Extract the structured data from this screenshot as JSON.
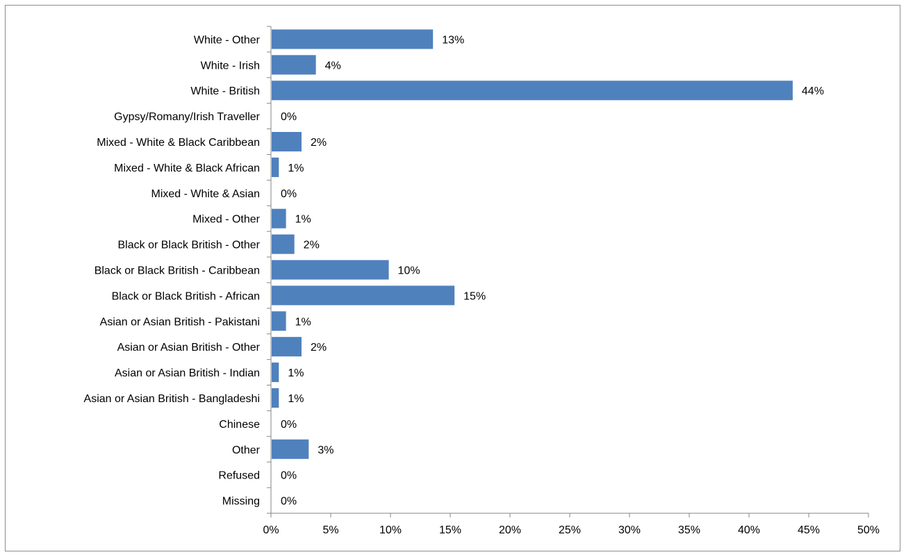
{
  "chart_data": {
    "type": "bar",
    "orientation": "horizontal",
    "title": "",
    "xlabel": "",
    "ylabel": "",
    "xlim": [
      0,
      50
    ],
    "x_ticks": [
      0,
      5,
      10,
      15,
      20,
      25,
      30,
      35,
      40,
      45,
      50
    ],
    "x_tick_labels": [
      "0%",
      "5%",
      "10%",
      "15%",
      "20%",
      "25%",
      "30%",
      "35%",
      "40%",
      "45%",
      "50%"
    ],
    "grid": false,
    "legend": "none",
    "bar_color": "#4f81bd",
    "categories": [
      "White - Other",
      "White - Irish",
      "White - British",
      "Gypsy/Romany/Irish Traveller",
      "Mixed - White & Black Caribbean",
      "Mixed - White & Black African",
      "Mixed - White & Asian",
      "Mixed - Other",
      "Black or Black British - Other",
      "Black or Black British - Caribbean",
      "Black or Black British - African",
      "Asian or Asian British - Pakistani",
      "Asian or Asian British - Other",
      "Asian or Asian British - Indian",
      "Asian or Asian British - Bangladeshi",
      "Chinese",
      "Other",
      "Refused",
      "Missing"
    ],
    "values": [
      13.5,
      3.7,
      43.6,
      0,
      2.5,
      0.6,
      0,
      1.2,
      1.9,
      9.8,
      15.3,
      1.2,
      2.5,
      0.6,
      0.6,
      0,
      3.1,
      0,
      0
    ],
    "data_labels": [
      "13%",
      "4%",
      "44%",
      "0%",
      "2%",
      "1%",
      "0%",
      "1%",
      "2%",
      "10%",
      "15%",
      "1%",
      "2%",
      "1%",
      "1%",
      "0%",
      "3%",
      "0%",
      "0%"
    ]
  }
}
